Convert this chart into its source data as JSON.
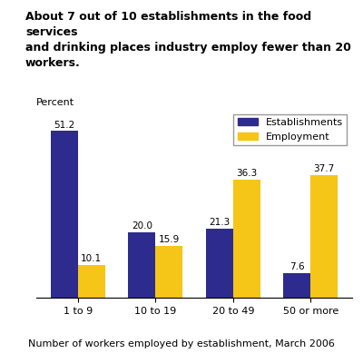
{
  "title": "About 7 out of 10 establishments in the food services\nand drinking places industry employ fewer than 20\nworkers.",
  "ylabel": "Percent",
  "xlabel": "Number of workers employed by establishment, March 2006",
  "categories": [
    "1 to 9",
    "10 to 19",
    "20 to 49",
    "50 or more"
  ],
  "establishments": [
    51.2,
    20.0,
    21.3,
    7.6
  ],
  "employment": [
    10.1,
    15.9,
    36.3,
    37.7
  ],
  "establishments_color": "#2E2B8E",
  "employment_color": "#F5C518",
  "ylim": [
    0,
    58
  ],
  "bar_width": 0.35,
  "legend_labels": [
    "Establishments",
    "Employment"
  ],
  "title_fontsize": 9,
  "axis_fontsize": 8,
  "label_fontsize": 7.5,
  "tick_fontsize": 8
}
